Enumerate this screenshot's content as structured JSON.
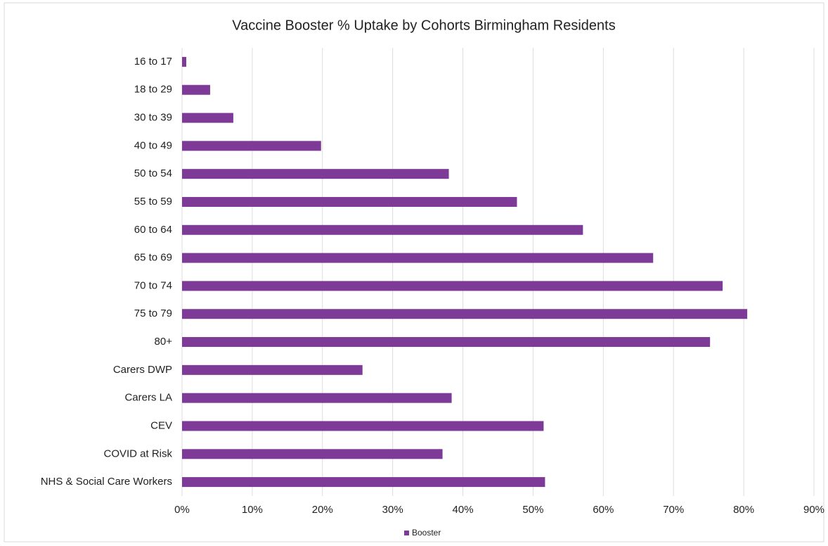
{
  "chart_data": {
    "type": "hbar",
    "title": "Vaccine Booster % Uptake by Cohorts Birmingham Residents",
    "categories": [
      "16 to 17",
      "18 to 29",
      "30 to 39",
      "40 to 49",
      "50 to 54",
      "55 to 59",
      "60 to 64",
      "65 to 69",
      "70 to 74",
      "75 to 79",
      "80+",
      "Carers DWP",
      "Carers LA",
      "CEV",
      "COVID at Risk",
      "NHS & Social Care Workers"
    ],
    "series": [
      {
        "name": "Booster",
        "color": "#7e3a97",
        "values": [
          0.6,
          4.0,
          7.3,
          19.8,
          38.0,
          47.7,
          57.1,
          67.1,
          77.0,
          80.5,
          75.2,
          25.7,
          38.4,
          51.5,
          37.1,
          51.7
        ]
      }
    ],
    "xlim": [
      0,
      90
    ],
    "xticks": [
      {
        "value": 0,
        "label": "0%"
      },
      {
        "value": 10,
        "label": "10%"
      },
      {
        "value": 20,
        "label": "20%"
      },
      {
        "value": 30,
        "label": "30%"
      },
      {
        "value": 40,
        "label": "40%"
      },
      {
        "value": 50,
        "label": "50%"
      },
      {
        "value": 60,
        "label": "60%"
      },
      {
        "value": 70,
        "label": "70%"
      },
      {
        "value": 80,
        "label": "80%"
      },
      {
        "value": 90,
        "label": "90%"
      }
    ],
    "grid": true,
    "legend": "bottom"
  }
}
